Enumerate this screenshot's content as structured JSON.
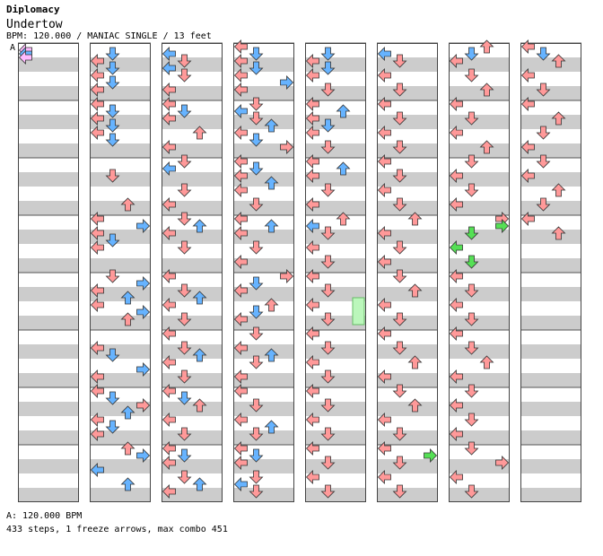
{
  "header": {
    "pack": "Diplomacy",
    "song": "Undertow",
    "info": "BPM: 120.000 / MANIAC SINGLE / 13 feet",
    "bpm_marker": "A"
  },
  "footer": {
    "bpm_line": "A: 120.000 BPM",
    "stats": "433 steps, 1 freeze arrows, max combo 451"
  },
  "colors": {
    "red": "#ff9999",
    "blue": "#66b3ff",
    "pink": "#ffbbff",
    "green": "#55e055",
    "stripe": "#cccccc",
    "freeze": "#bbf7bb"
  },
  "columns": 8,
  "measures_per_column": 8,
  "arrows": [
    [
      0,
      0.0625,
      0
    ],
    [
      0,
      0.125,
      0
    ],
    [
      0,
      0.1875,
      0
    ],
    [
      1,
      1.0,
      0
    ],
    [
      1,
      0.125,
      1
    ],
    [
      1,
      0.25,
      0
    ],
    [
      1,
      0.375,
      1
    ],
    [
      1,
      0.5,
      0
    ],
    [
      1,
      0.625,
      1
    ],
    [
      1,
      0.75,
      0
    ],
    [
      1,
      1.125,
      1
    ],
    [
      1,
      1.25,
      0
    ],
    [
      1,
      1.375,
      1
    ],
    [
      1,
      1.5,
      0
    ],
    [
      1,
      1.625,
      1
    ],
    [
      1,
      2.25,
      1
    ],
    [
      1,
      2.75,
      2
    ],
    [
      1,
      3.0,
      0
    ],
    [
      1,
      3.125,
      3
    ],
    [
      1,
      3.25,
      0
    ],
    [
      1,
      3.375,
      1
    ],
    [
      1,
      3.5,
      0
    ],
    [
      1,
      4.0,
      1
    ],
    [
      1,
      4.125,
      3
    ],
    [
      1,
      4.25,
      0
    ],
    [
      1,
      4.375,
      2
    ],
    [
      1,
      4.5,
      0
    ],
    [
      1,
      4.625,
      3
    ],
    [
      1,
      4.75,
      2
    ],
    [
      1,
      5.25,
      0
    ],
    [
      1,
      5.375,
      1
    ],
    [
      1,
      5.625,
      3
    ],
    [
      1,
      5.75,
      0
    ],
    [
      1,
      6.0,
      0
    ],
    [
      1,
      6.125,
      1
    ],
    [
      1,
      6.25,
      3
    ],
    [
      1,
      6.375,
      2
    ],
    [
      1,
      6.5,
      0
    ],
    [
      1,
      6.625,
      1
    ],
    [
      1,
      6.75,
      0
    ],
    [
      1,
      7.0,
      2
    ],
    [
      1,
      7.125,
      3
    ],
    [
      1,
      7.375,
      0
    ],
    [
      1,
      7.625,
      2
    ],
    [
      2,
      0.125,
      0
    ],
    [
      2,
      0.25,
      1
    ],
    [
      2,
      0.375,
      0
    ],
    [
      2,
      0.5,
      1
    ],
    [
      2,
      0.75,
      0
    ],
    [
      2,
      1.0,
      0
    ],
    [
      2,
      1.125,
      1
    ],
    [
      2,
      1.25,
      0
    ],
    [
      2,
      1.5,
      2
    ],
    [
      2,
      1.75,
      0
    ],
    [
      2,
      2.0,
      1
    ],
    [
      2,
      2.125,
      0
    ],
    [
      2,
      2.5,
      1
    ],
    [
      2,
      2.75,
      0
    ],
    [
      2,
      3.0,
      1
    ],
    [
      2,
      3.125,
      2
    ],
    [
      2,
      3.25,
      0
    ],
    [
      2,
      3.5,
      1
    ],
    [
      2,
      4.0,
      0
    ],
    [
      2,
      4.25,
      1
    ],
    [
      2,
      4.375,
      2
    ],
    [
      2,
      4.5,
      0
    ],
    [
      2,
      4.75,
      1
    ],
    [
      2,
      5.0,
      0
    ],
    [
      2,
      5.25,
      1
    ],
    [
      2,
      5.375,
      2
    ],
    [
      2,
      5.5,
      0
    ],
    [
      2,
      5.75,
      1
    ],
    [
      2,
      6.0,
      0
    ],
    [
      2,
      6.125,
      1
    ],
    [
      2,
      6.25,
      2
    ],
    [
      2,
      6.5,
      0
    ],
    [
      2,
      6.75,
      1
    ],
    [
      2,
      7.0,
      0
    ],
    [
      2,
      7.125,
      1
    ],
    [
      2,
      7.25,
      0
    ],
    [
      2,
      7.5,
      1
    ],
    [
      2,
      7.625,
      2
    ],
    [
      2,
      7.75,
      0
    ],
    [
      3,
      0.0,
      0
    ],
    [
      3,
      0.125,
      1
    ],
    [
      3,
      0.25,
      0
    ],
    [
      3,
      0.375,
      1
    ],
    [
      3,
      0.5,
      0
    ],
    [
      3,
      0.625,
      3
    ],
    [
      3,
      0.75,
      0
    ],
    [
      3,
      1.0,
      1
    ],
    [
      3,
      1.125,
      0
    ],
    [
      3,
      1.25,
      1
    ],
    [
      3,
      1.375,
      2
    ],
    [
      3,
      1.5,
      0
    ],
    [
      3,
      1.625,
      1
    ],
    [
      3,
      1.75,
      3
    ],
    [
      3,
      2.0,
      0
    ],
    [
      3,
      2.125,
      1
    ],
    [
      3,
      2.25,
      0
    ],
    [
      3,
      2.375,
      2
    ],
    [
      3,
      2.5,
      0
    ],
    [
      3,
      2.75,
      1
    ],
    [
      3,
      3.0,
      0
    ],
    [
      3,
      3.125,
      2
    ],
    [
      3,
      3.25,
      0
    ],
    [
      3,
      3.5,
      1
    ],
    [
      3,
      3.75,
      0
    ],
    [
      3,
      4.0,
      3
    ],
    [
      3,
      4.125,
      1
    ],
    [
      3,
      4.25,
      0
    ],
    [
      3,
      4.5,
      2
    ],
    [
      3,
      4.625,
      1
    ],
    [
      3,
      4.75,
      0
    ],
    [
      3,
      5.0,
      1
    ],
    [
      3,
      5.25,
      0
    ],
    [
      3,
      5.375,
      2
    ],
    [
      3,
      5.5,
      1
    ],
    [
      3,
      5.75,
      0
    ],
    [
      3,
      6.0,
      0
    ],
    [
      3,
      6.25,
      1
    ],
    [
      3,
      6.5,
      0
    ],
    [
      3,
      6.625,
      2
    ],
    [
      3,
      6.75,
      1
    ],
    [
      3,
      7.0,
      0
    ],
    [
      3,
      7.125,
      1
    ],
    [
      3,
      7.25,
      0
    ],
    [
      3,
      7.5,
      1
    ],
    [
      3,
      7.625,
      0
    ],
    [
      3,
      7.75,
      1
    ],
    [
      4,
      0.125,
      1
    ],
    [
      4,
      0.25,
      0
    ],
    [
      4,
      0.375,
      1
    ],
    [
      4,
      0.5,
      0
    ],
    [
      4,
      0.75,
      1
    ],
    [
      4,
      1.0,
      0
    ],
    [
      4,
      1.125,
      2
    ],
    [
      4,
      1.25,
      0
    ],
    [
      4,
      1.375,
      1
    ],
    [
      4,
      1.5,
      0
    ],
    [
      4,
      1.75,
      1
    ],
    [
      4,
      2.0,
      0
    ],
    [
      4,
      2.125,
      2
    ],
    [
      4,
      2.25,
      0
    ],
    [
      4,
      2.5,
      1
    ],
    [
      4,
      2.75,
      0
    ],
    [
      4,
      3.0,
      2
    ],
    [
      4,
      3.125,
      0
    ],
    [
      4,
      3.25,
      1
    ],
    [
      4,
      3.5,
      0
    ],
    [
      4,
      3.75,
      1
    ],
    [
      4,
      4.0,
      0
    ],
    [
      4,
      4.25,
      1
    ],
    [
      4,
      4.5,
      0
    ],
    [
      4,
      4.75,
      1
    ],
    [
      4,
      5.0,
      0
    ],
    [
      4,
      5.25,
      1
    ],
    [
      4,
      5.5,
      0
    ],
    [
      4,
      5.75,
      1
    ],
    [
      4,
      6.0,
      0
    ],
    [
      4,
      6.25,
      1
    ],
    [
      4,
      6.5,
      0
    ],
    [
      4,
      6.75,
      1
    ],
    [
      4,
      7.0,
      0
    ],
    [
      4,
      7.25,
      1
    ],
    [
      4,
      7.5,
      0
    ],
    [
      4,
      7.75,
      1
    ],
    [
      5,
      0.125,
      0
    ],
    [
      5,
      0.25,
      1
    ],
    [
      5,
      0.5,
      0
    ],
    [
      5,
      0.75,
      1
    ],
    [
      5,
      1.0,
      0
    ],
    [
      5,
      1.25,
      1
    ],
    [
      5,
      1.5,
      0
    ],
    [
      5,
      1.75,
      1
    ],
    [
      5,
      2.0,
      0
    ],
    [
      5,
      2.25,
      1
    ],
    [
      5,
      2.5,
      0
    ],
    [
      5,
      2.75,
      1
    ],
    [
      5,
      3.0,
      2
    ],
    [
      5,
      3.25,
      0
    ],
    [
      5,
      3.5,
      1
    ],
    [
      5,
      3.75,
      0
    ],
    [
      5,
      4.0,
      1
    ],
    [
      5,
      4.25,
      2
    ],
    [
      5,
      4.5,
      0
    ],
    [
      5,
      4.75,
      1
    ],
    [
      5,
      5.0,
      0
    ],
    [
      5,
      5.25,
      1
    ],
    [
      5,
      5.5,
      2
    ],
    [
      5,
      5.75,
      0
    ],
    [
      5,
      6.0,
      1
    ],
    [
      5,
      6.25,
      2
    ],
    [
      5,
      6.5,
      0
    ],
    [
      5,
      6.75,
      1
    ],
    [
      5,
      7.0,
      0
    ],
    [
      5,
      7.125,
      3
    ],
    [
      5,
      7.25,
      1
    ],
    [
      5,
      7.5,
      0
    ],
    [
      5,
      7.75,
      1
    ],
    [
      6,
      0.0,
      2
    ],
    [
      6,
      0.125,
      1
    ],
    [
      6,
      0.25,
      0
    ],
    [
      6,
      0.5,
      1
    ],
    [
      6,
      0.75,
      2
    ],
    [
      6,
      1.0,
      0
    ],
    [
      6,
      1.25,
      1
    ],
    [
      6,
      1.5,
      0
    ],
    [
      6,
      1.75,
      2
    ],
    [
      6,
      2.0,
      1
    ],
    [
      6,
      2.25,
      0
    ],
    [
      6,
      2.5,
      1
    ],
    [
      6,
      2.75,
      0
    ],
    [
      6,
      3.0,
      3
    ],
    [
      6,
      3.125,
      3
    ],
    [
      6,
      3.25,
      1
    ],
    [
      6,
      3.5,
      0
    ],
    [
      6,
      3.75,
      1
    ],
    [
      6,
      4.0,
      0
    ],
    [
      6,
      4.25,
      1
    ],
    [
      6,
      4.5,
      0
    ],
    [
      6,
      4.75,
      1
    ],
    [
      6,
      5.0,
      0
    ],
    [
      6,
      5.25,
      1
    ],
    [
      6,
      5.5,
      2
    ],
    [
      6,
      5.75,
      0
    ],
    [
      6,
      6.0,
      1
    ],
    [
      6,
      6.25,
      0
    ],
    [
      6,
      6.5,
      1
    ],
    [
      6,
      6.75,
      0
    ],
    [
      6,
      7.0,
      1
    ],
    [
      6,
      7.25,
      3
    ],
    [
      6,
      7.5,
      0
    ],
    [
      6,
      7.75,
      1
    ],
    [
      7,
      0.0,
      0
    ],
    [
      7,
      0.125,
      1
    ],
    [
      7,
      0.25,
      2
    ],
    [
      7,
      0.5,
      0
    ],
    [
      7,
      0.75,
      1
    ],
    [
      7,
      1.0,
      0
    ],
    [
      7,
      1.25,
      2
    ],
    [
      7,
      1.5,
      1
    ],
    [
      7,
      1.75,
      0
    ],
    [
      7,
      2.0,
      1
    ],
    [
      7,
      2.25,
      0
    ],
    [
      7,
      2.5,
      2
    ],
    [
      7,
      2.75,
      1
    ],
    [
      7,
      3.0,
      0
    ],
    [
      7,
      3.25,
      2
    ]
  ]
}
